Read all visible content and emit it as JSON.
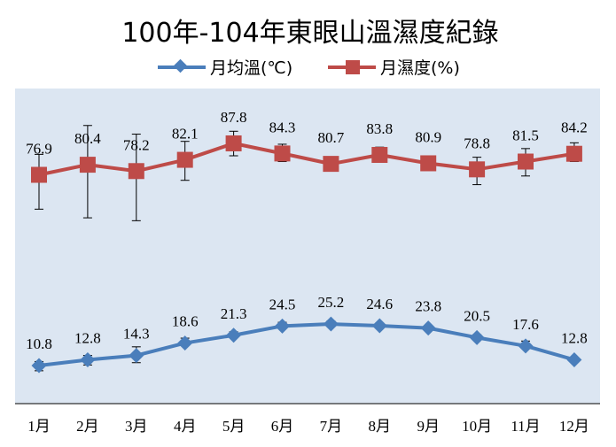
{
  "chart_data": {
    "type": "line",
    "title": "100年-104年東眼山溫濕度紀錄",
    "categories": [
      "1月",
      "2月",
      "3月",
      "4月",
      "5月",
      "6月",
      "7月",
      "8月",
      "9月",
      "10月",
      "11月",
      "12月"
    ],
    "series": [
      {
        "name": "月均溫(℃)",
        "color": "#4A7EBB",
        "marker": "diamond",
        "values": [
          10.8,
          12.8,
          14.3,
          18.6,
          21.3,
          24.5,
          25.2,
          24.6,
          23.8,
          20.5,
          17.6,
          12.8
        ],
        "error_low": [
          9.0,
          11.0,
          11.8,
          null,
          null,
          null,
          null,
          null,
          null,
          null,
          null,
          null
        ],
        "error_high": [
          12.2,
          14.3,
          17.3,
          20.3,
          22.5,
          25.8,
          26.2,
          25.5,
          24.5,
          21.5,
          19.3,
          13.3
        ]
      },
      {
        "name": "月濕度(%)",
        "color": "#BE4B48",
        "marker": "square",
        "values": [
          76.9,
          80.4,
          78.2,
          82.1,
          87.8,
          84.3,
          80.7,
          83.8,
          80.9,
          78.8,
          81.5,
          84.2
        ],
        "error_low": [
          65.0,
          62.0,
          61.0,
          75.0,
          83.5,
          81.5,
          78.5,
          81.8,
          79.5,
          73.5,
          76.5,
          81.5
        ],
        "error_high": [
          84.0,
          94.0,
          91.0,
          88.5,
          92.0,
          87.5,
          83.0,
          86.5,
          82.0,
          83.0,
          86.0,
          88.0
        ]
      }
    ],
    "ylim": [
      0,
      100
    ],
    "legend": "top",
    "grid": false,
    "plot_background": "#DCE6F2"
  }
}
